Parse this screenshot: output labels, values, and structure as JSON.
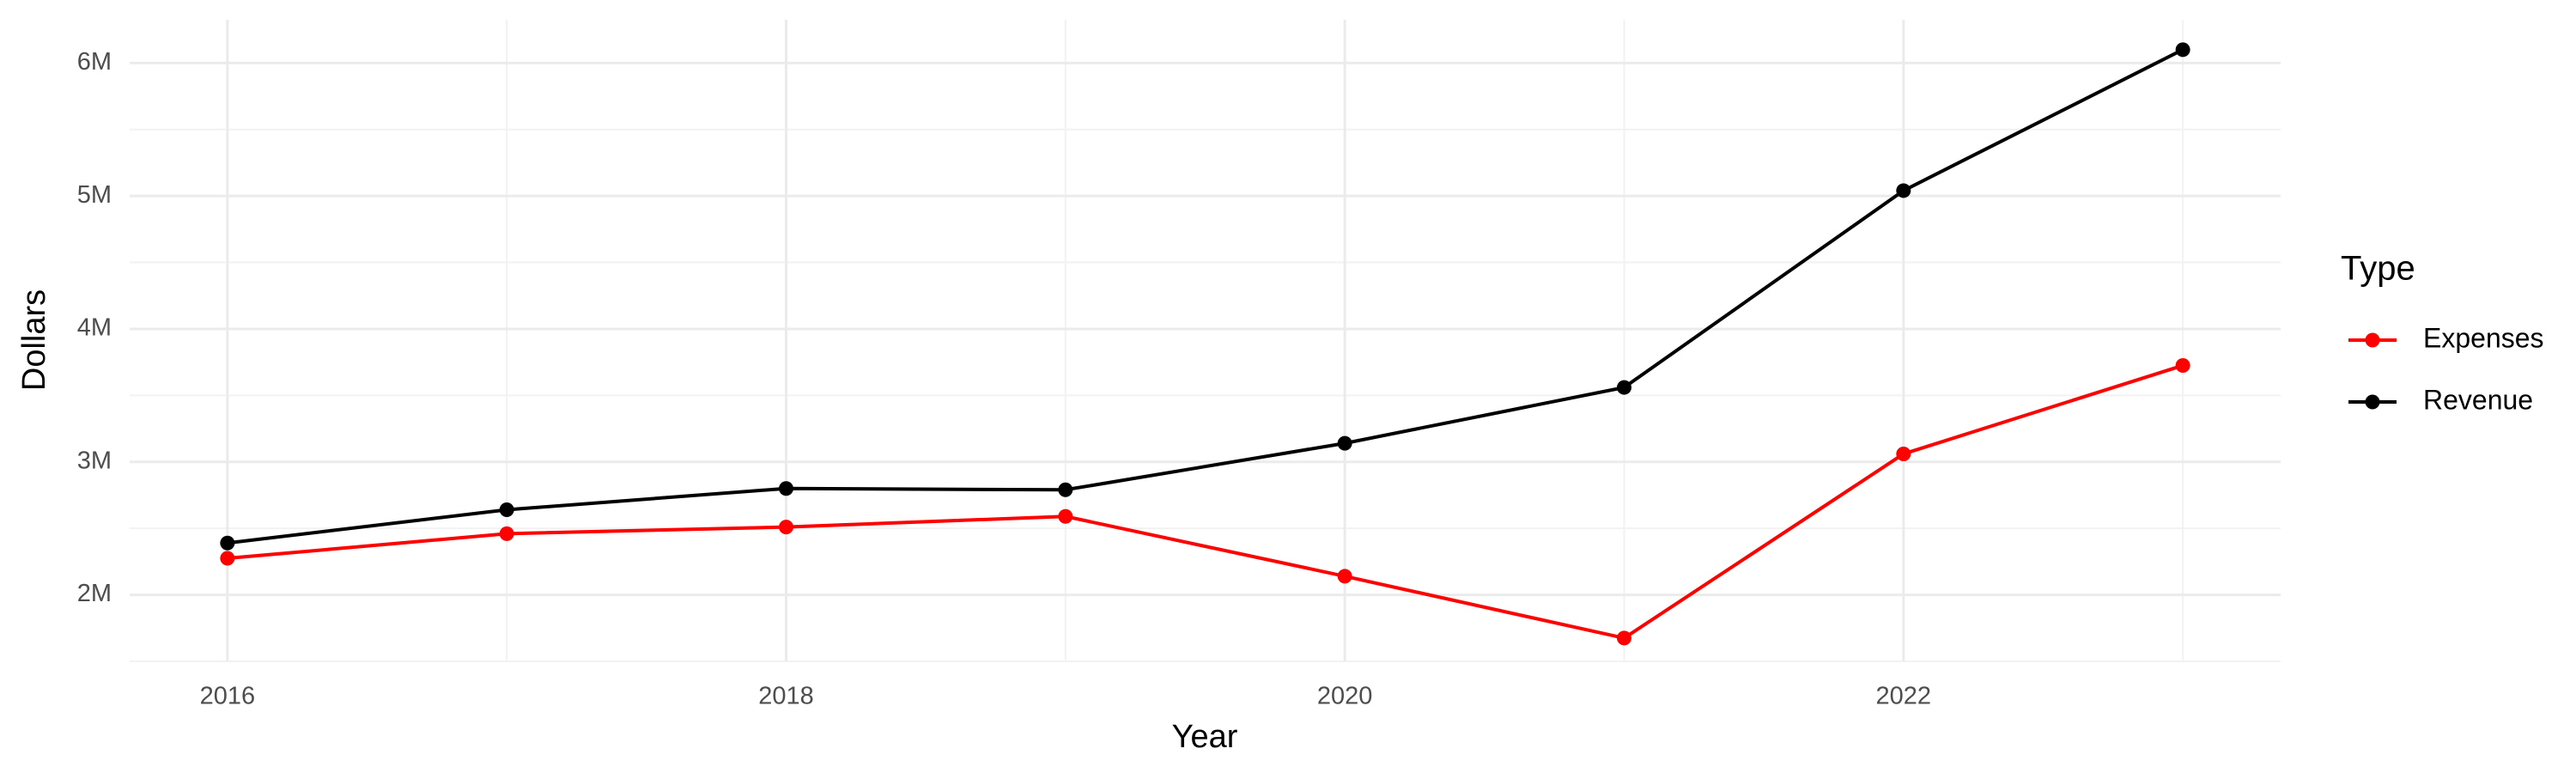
{
  "chart_data": {
    "type": "line",
    "x_label": "Year",
    "y_label": "Dollars",
    "legend_title": "Type",
    "legend_position": "right",
    "x": [
      2016,
      2017,
      2018,
      2019,
      2020,
      2021,
      2022,
      2023
    ],
    "series": [
      {
        "name": "Expenses",
        "color": "#ff0000",
        "values": [
          2275000,
          2460000,
          2510000,
          2590000,
          2140000,
          1675000,
          3060000,
          3725000
        ]
      },
      {
        "name": "Revenue",
        "color": "#000000",
        "values": [
          2390000,
          2640000,
          2800000,
          2790000,
          3140000,
          3560000,
          5040000,
          6100000
        ]
      }
    ],
    "xlim": [
      2015.65,
      2023.35
    ],
    "xticks": [
      2016,
      2018,
      2020,
      2022
    ],
    "ylim": [
      1500000,
      6325000
    ],
    "yticks": [
      {
        "value": 2000000,
        "label": "2M"
      },
      {
        "value": 3000000,
        "label": "3M"
      },
      {
        "value": 4000000,
        "label": "4M"
      },
      {
        "value": 5000000,
        "label": "5M"
      },
      {
        "value": 6000000,
        "label": "6M"
      }
    ],
    "grid": true,
    "minor_grid": true
  }
}
